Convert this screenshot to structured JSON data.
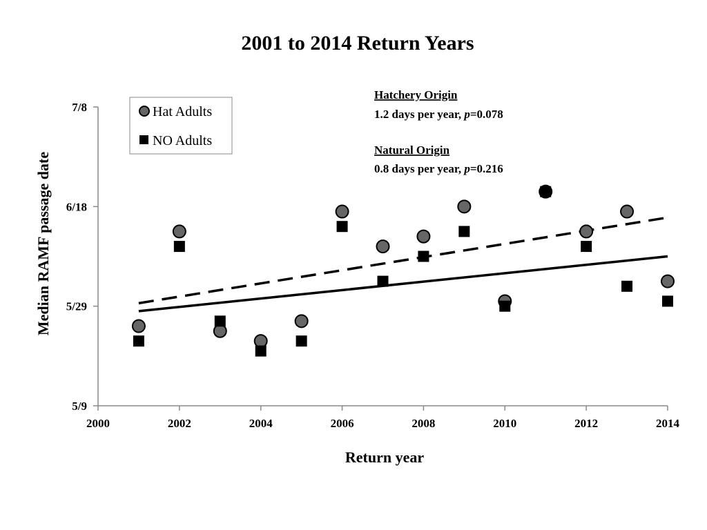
{
  "chart_data": {
    "type": "scatter",
    "title": "2001 to 2014 Return Years",
    "xlabel": "Return year",
    "ylabel": "Median RAMF passage date",
    "xlim": [
      2000,
      2014
    ],
    "ylim_day_of_year": [
      129,
      189
    ],
    "x_ticks": [
      2000,
      2002,
      2004,
      2006,
      2008,
      2010,
      2012,
      2014
    ],
    "y_ticks": [
      {
        "label": "5/9",
        "day_of_year": 129
      },
      {
        "label": "5/29",
        "day_of_year": 149
      },
      {
        "label": "6/18",
        "day_of_year": 169
      },
      {
        "label": "7/8",
        "day_of_year": 189
      }
    ],
    "grid": false,
    "legend": {
      "placement": "top-left",
      "entries": [
        {
          "label": "Hat Adults",
          "marker": "circle"
        },
        {
          "label": "NO Adults",
          "marker": "square"
        }
      ]
    },
    "series": [
      {
        "name": "Hat Adults",
        "marker": "circle",
        "color": "#666666",
        "x": [
          2001,
          2002,
          2003,
          2004,
          2005,
          2006,
          2007,
          2008,
          2009,
          2010,
          2011,
          2012,
          2013,
          2014
        ],
        "y": [
          "5/25",
          "6/13",
          "5/24",
          "5/22",
          "5/26",
          "6/17",
          "6/10",
          "6/12",
          "6/18",
          "5/30",
          "6/21",
          "6/13",
          "6/17",
          "6/3"
        ],
        "y_day_of_year": [
          145,
          164,
          144,
          142,
          146,
          168,
          161,
          163,
          169,
          150,
          172,
          164,
          168,
          154
        ]
      },
      {
        "name": "NO Adults",
        "marker": "square",
        "color": "#000000",
        "x": [
          2001,
          2002,
          2003,
          2004,
          2005,
          2006,
          2007,
          2008,
          2009,
          2010,
          2011,
          2012,
          2013,
          2014
        ],
        "y": [
          "5/22",
          "6/10",
          "5/26",
          "5/20",
          "5/22",
          "6/14",
          "6/3",
          "6/8",
          "6/13",
          "5/29",
          "6/21",
          "6/10",
          "6/2",
          "5/30"
        ],
        "y_day_of_year": [
          142,
          161,
          146,
          140,
          142,
          165,
          154,
          159,
          164,
          149,
          172,
          161,
          153,
          150
        ]
      }
    ],
    "trendlines": [
      {
        "series": "Hat Adults",
        "style": "dashed",
        "x": [
          2001,
          2014
        ],
        "y_day_of_year": [
          149.6,
          166.8
        ]
      },
      {
        "series": "NO Adults",
        "style": "solid",
        "x": [
          2001,
          2014
        ],
        "y_day_of_year": [
          148.0,
          159.0
        ]
      }
    ],
    "annotations": [
      {
        "heading": "Hatchery Origin",
        "text_prefix": "1.2 days per year, ",
        "p_symbol": "p",
        "p_value": "=0.078"
      },
      {
        "heading": "Natural Origin",
        "text_prefix": "0.8 days per year, ",
        "p_symbol": "p",
        "p_value": "=0.216"
      }
    ]
  }
}
